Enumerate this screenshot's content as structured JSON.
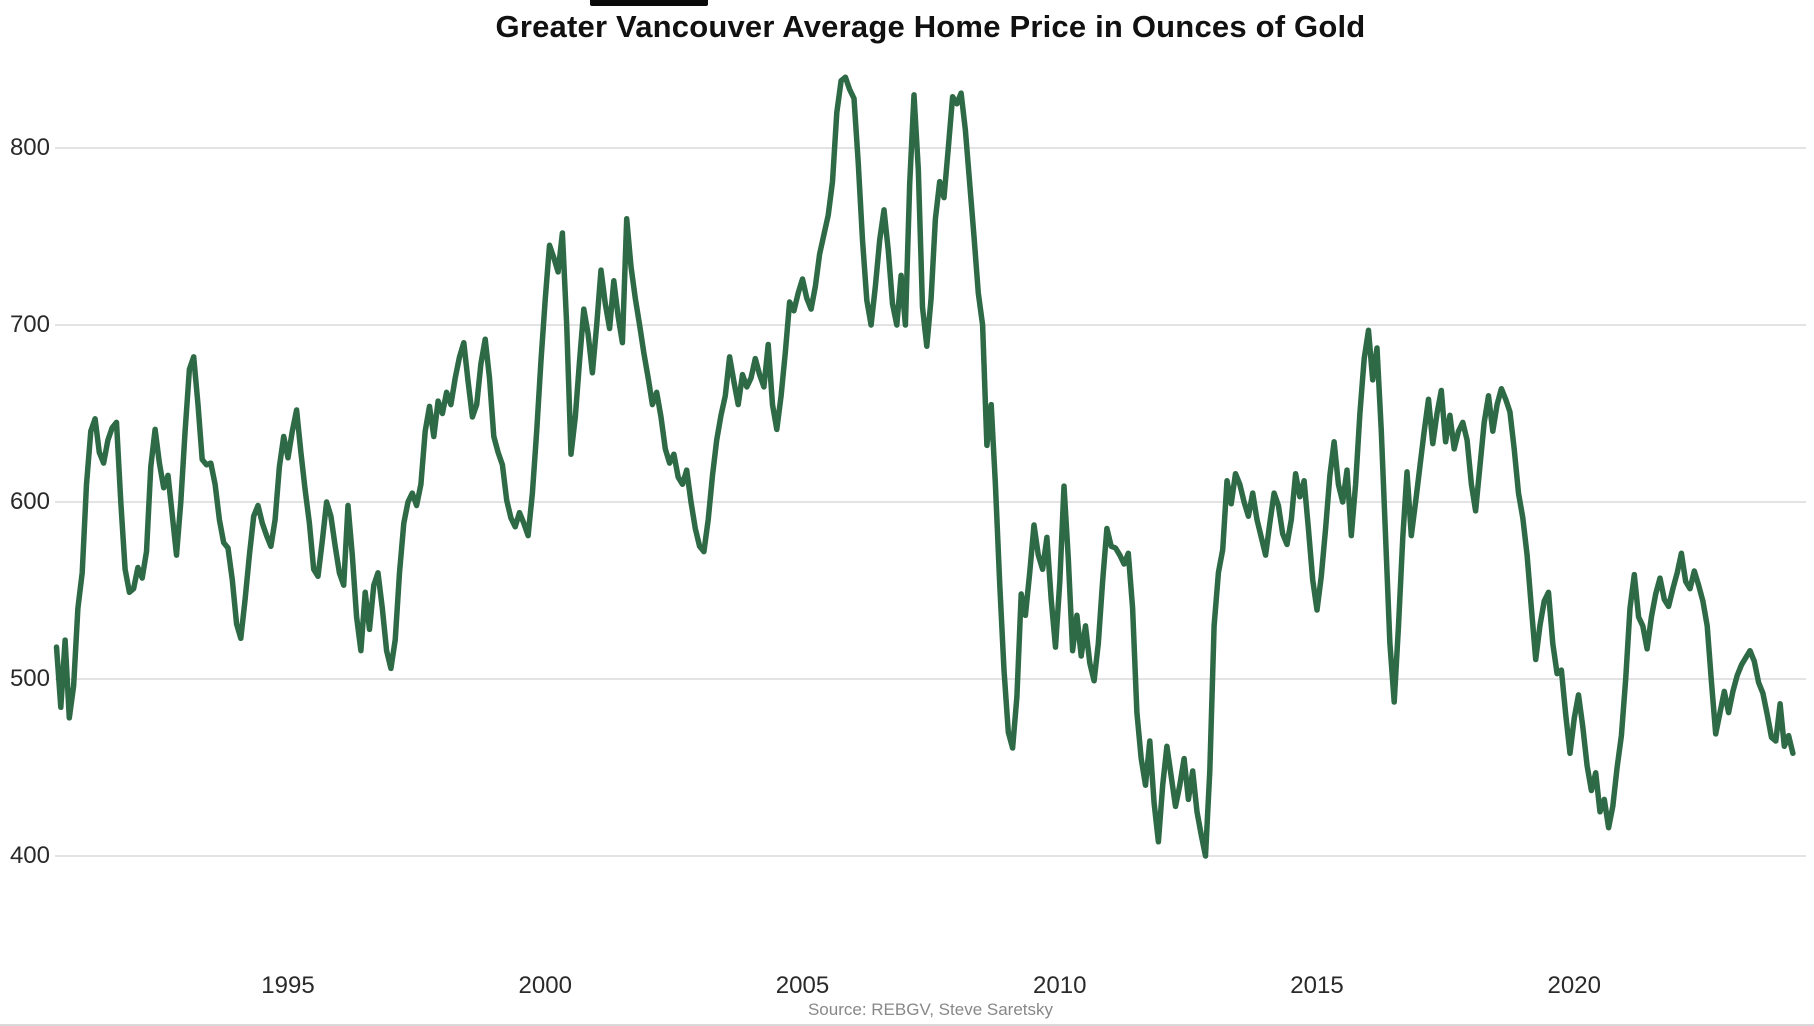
{
  "title": "Greater Vancouver Average Home Price in Ounces of Gold",
  "source_note": "Source: REBGV, Steve Saretsky",
  "colors": {
    "line": "#2e6a45",
    "grid": "#e3e3e3",
    "axis_text": "#2a2a2a",
    "source_text": "#888888",
    "background": "#ffffff"
  },
  "chart_data": {
    "type": "line",
    "title": "Greater Vancouver Average Home Price in Ounces of Gold",
    "xlabel": "",
    "ylabel": "",
    "legend": "none",
    "grid": "horizontal",
    "x_axis": {
      "tick_labels": [
        "1995",
        "2000",
        "2005",
        "2010",
        "2015",
        "2020"
      ],
      "tick_years": [
        1995,
        2000,
        2005,
        2010,
        2015,
        2020
      ],
      "range_years": [
        1990.5,
        2024.4
      ]
    },
    "y_axis": {
      "tick_labels": [
        "800",
        "700",
        "600",
        "500",
        "400"
      ],
      "tick_values": [
        800,
        700,
        600,
        500,
        400
      ],
      "ylim": [
        370,
        848
      ]
    },
    "series": [
      {
        "name": "Average home price in ounces of gold",
        "frequency": "monthly",
        "start_year": 1990,
        "start_month": 7,
        "values": [
          518,
          484,
          522,
          478,
          496,
          540,
          560,
          610,
          640,
          647,
          628,
          622,
          635,
          642,
          645,
          600,
          562,
          549,
          551,
          563,
          557,
          572,
          620,
          641,
          622,
          608,
          615,
          593,
          570,
          600,
          640,
          675,
          682,
          655,
          624,
          621,
          622,
          610,
          590,
          577,
          574,
          556,
          531,
          523,
          545,
          570,
          592,
          598,
          588,
          581,
          575,
          590,
          620,
          637,
          625,
          640,
          652,
          628,
          607,
          588,
          562,
          558,
          578,
          600,
          592,
          575,
          560,
          553,
          598,
          570,
          535,
          516,
          549,
          528,
          553,
          560,
          540,
          516,
          506,
          522,
          560,
          588,
          600,
          605,
          598,
          610,
          640,
          654,
          637,
          657,
          650,
          662,
          655,
          670,
          682,
          690,
          668,
          648,
          655,
          678,
          692,
          670,
          637,
          628,
          621,
          601,
          591,
          586,
          594,
          588,
          581,
          605,
          640,
          680,
          715,
          745,
          738,
          730,
          752,
          700,
          627,
          648,
          680,
          709,
          695,
          673,
          700,
          731,
          712,
          698,
          725,
          705,
          690,
          760,
          733,
          715,
          700,
          684,
          670,
          655,
          662,
          648,
          630,
          622,
          627,
          614,
          610,
          618,
          600,
          585,
          575,
          572,
          590,
          615,
          635,
          649,
          660,
          682,
          668,
          655,
          672,
          665,
          670,
          681,
          672,
          665,
          689,
          655,
          641,
          660,
          685,
          713,
          708,
          718,
          726,
          715,
          709,
          722,
          740,
          751,
          762,
          781,
          820,
          838,
          840,
          833,
          828,
          792,
          748,
          714,
          700,
          722,
          748,
          765,
          742,
          712,
          700,
          728,
          700,
          780,
          830,
          788,
          710,
          688,
          715,
          760,
          781,
          772,
          800,
          829,
          825,
          831,
          810,
          780,
          750,
          718,
          700,
          632,
          655,
          610,
          554,
          505,
          470,
          461,
          490,
          548,
          536,
          560,
          587,
          570,
          562,
          580,
          545,
          518,
          555,
          609,
          568,
          516,
          536,
          513,
          530,
          509,
          499,
          520,
          555,
          585,
          575,
          574,
          570,
          565,
          571,
          540,
          481,
          455,
          440,
          465,
          430,
          408,
          440,
          462,
          445,
          428,
          440,
          455,
          432,
          448,
          425,
          412,
          400,
          448,
          530,
          560,
          573,
          612,
          599,
          616,
          610,
          600,
          592,
          605,
          590,
          580,
          570,
          588,
          605,
          598,
          582,
          576,
          590,
          616,
          603,
          612,
          585,
          556,
          539,
          558,
          585,
          615,
          634,
          610,
          600,
          618,
          581,
          610,
          650,
          681,
          697,
          669,
          687,
          640,
          580,
          520,
          487,
          530,
          580,
          617,
          581,
          600,
          620,
          640,
          658,
          633,
          650,
          663,
          634,
          649,
          630,
          640,
          645,
          635,
          610,
          595,
          620,
          645,
          660,
          640,
          655,
          664,
          658,
          651,
          630,
          605,
          591,
          570,
          540,
          511,
          530,
          544,
          549,
          520,
          503,
          505,
          480,
          458,
          478,
          491,
          473,
          451,
          437,
          447,
          425,
          432,
          416,
          428,
          450,
          468,
          500,
          540,
          559,
          535,
          530,
          517,
          535,
          548,
          557,
          545,
          541,
          551,
          560,
          571,
          555,
          551,
          561,
          553,
          544,
          530,
          498,
          469,
          481,
          493,
          481,
          493,
          502,
          508,
          512,
          516,
          510,
          498,
          492,
          480,
          467,
          465,
          486,
          462,
          468,
          458
        ]
      }
    ]
  }
}
